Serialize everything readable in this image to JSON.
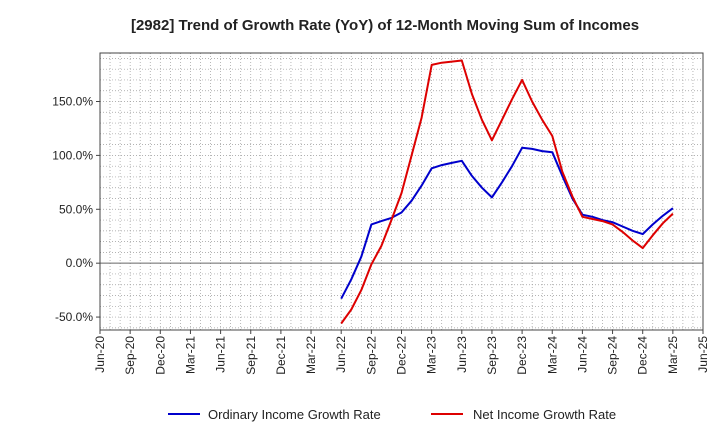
{
  "chart_data": {
    "type": "line",
    "title": "[2982]  Trend of Growth Rate (YoY) of 12-Month Moving Sum of Incomes",
    "xlabel": "",
    "ylabel": "",
    "x_ticks": [
      "Jun-20",
      "Sep-20",
      "Dec-20",
      "Mar-21",
      "Jun-21",
      "Sep-21",
      "Dec-21",
      "Mar-22",
      "Jun-22",
      "Sep-22",
      "Dec-22",
      "Mar-23",
      "Jun-23",
      "Sep-23",
      "Dec-23",
      "Mar-24",
      "Jun-24",
      "Sep-24",
      "Dec-24",
      "Mar-25",
      "Jun-25"
    ],
    "y_ticks": [
      -50,
      0,
      50,
      100,
      150
    ],
    "y_tick_labels": [
      "-50.0%",
      "0.0%",
      "50.0%",
      "100.0%",
      "150.0%"
    ],
    "ylim": [
      -62,
      195
    ],
    "grid": true,
    "legend_position": "bottom",
    "series": [
      {
        "name": "Ordinary Income Growth Rate",
        "color": "#0000cc",
        "x": [
          "Jun-22",
          "Jul-22",
          "Aug-22",
          "Sep-22",
          "Oct-22",
          "Nov-22",
          "Dec-22",
          "Jan-23",
          "Feb-23",
          "Mar-23",
          "Apr-23",
          "May-23",
          "Jun-23",
          "Jul-23",
          "Aug-23",
          "Sep-23",
          "Oct-23",
          "Nov-23",
          "Dec-23",
          "Jan-24",
          "Feb-24",
          "Mar-24",
          "Apr-24",
          "May-24",
          "Jun-24",
          "Jul-24",
          "Aug-24",
          "Sep-24",
          "Oct-24",
          "Nov-24",
          "Dec-24",
          "Jan-25",
          "Feb-25",
          "Mar-25"
        ],
        "values": [
          -33,
          -15,
          6,
          36,
          39,
          42,
          47,
          58,
          72,
          88,
          91,
          93,
          95,
          81,
          70,
          61,
          75,
          90,
          107,
          106,
          104,
          103,
          81,
          60,
          45,
          43,
          40,
          38,
          34,
          30,
          27,
          36,
          44,
          51
        ]
      },
      {
        "name": "Net Income Growth Rate",
        "color": "#dd0000",
        "x": [
          "Jun-22",
          "Jul-22",
          "Aug-22",
          "Sep-22",
          "Oct-22",
          "Nov-22",
          "Dec-22",
          "Jan-23",
          "Feb-23",
          "Mar-23",
          "Apr-23",
          "May-23",
          "Jun-23",
          "Jul-23",
          "Aug-23",
          "Sep-23",
          "Oct-23",
          "Nov-23",
          "Dec-23",
          "Jan-24",
          "Feb-24",
          "Mar-24",
          "Apr-24",
          "May-24",
          "Jun-24",
          "Jul-24",
          "Aug-24",
          "Sep-24",
          "Oct-24",
          "Nov-24",
          "Dec-24",
          "Jan-25",
          "Feb-25",
          "Mar-25"
        ],
        "values": [
          -56,
          -43,
          -25,
          -1,
          16,
          40,
          65,
          100,
          135,
          184,
          186,
          187,
          188,
          157,
          133,
          114,
          133,
          152,
          170,
          150,
          133,
          118,
          85,
          62,
          43,
          41,
          39,
          36,
          29,
          21,
          14,
          26,
          37,
          46
        ]
      }
    ]
  }
}
